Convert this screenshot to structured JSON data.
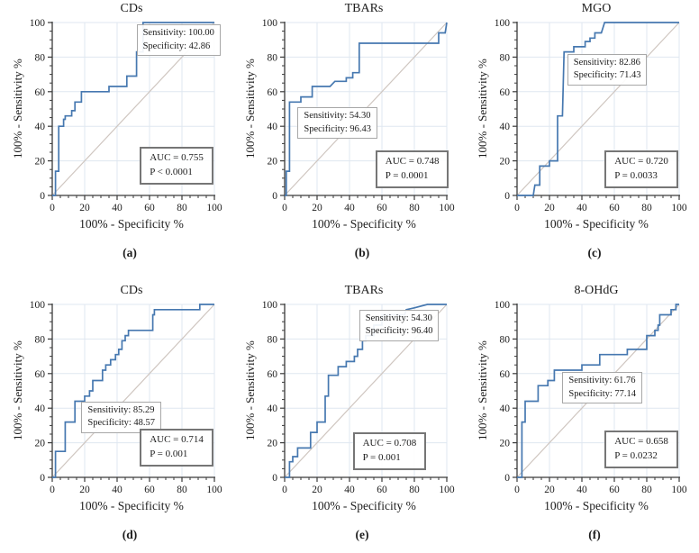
{
  "figure": {
    "colors": {
      "curve": "#4678b0",
      "grid": "#dfe7f0",
      "diagonal": "#cfc6c0",
      "axis": "#3a3a3a",
      "tick_text": "#1c1c1c",
      "ann_border": "#a8a8a8",
      "auc_border": "#767676"
    }
  },
  "chart_data": [
    {
      "type": "line",
      "title": "CDs",
      "caption": "(a)",
      "xlabel": "100% - Specificity %",
      "ylabel": "100% - Sensitivity %",
      "xlim": [
        0,
        100
      ],
      "ylim": [
        0,
        100
      ],
      "xticks": [
        0,
        20,
        40,
        60,
        80,
        100
      ],
      "yticks": [
        0,
        20,
        40,
        60,
        80,
        100
      ],
      "minor_tick_step": 5,
      "grid": true,
      "diagonal": true,
      "roc_points": [
        [
          0,
          0
        ],
        [
          2,
          0
        ],
        [
          2,
          14
        ],
        [
          4,
          14
        ],
        [
          4,
          40
        ],
        [
          7,
          40
        ],
        [
          7,
          44
        ],
        [
          8,
          44
        ],
        [
          8,
          46
        ],
        [
          12,
          46
        ],
        [
          12,
          49
        ],
        [
          14,
          49
        ],
        [
          14,
          54
        ],
        [
          18,
          54
        ],
        [
          18,
          60
        ],
        [
          35,
          60
        ],
        [
          35,
          63
        ],
        [
          46,
          63
        ],
        [
          46,
          69
        ],
        [
          52,
          69
        ],
        [
          52,
          83
        ],
        [
          56,
          83
        ],
        [
          56,
          100
        ],
        [
          100,
          100
        ]
      ],
      "annotation": {
        "lines": [
          "Sensitivity: 100.00",
          "Specificity: 42.86"
        ],
        "x": 52,
        "y": 99
      },
      "auc_box": {
        "lines": [
          "AUC = 0.755",
          "P < 0.0001"
        ],
        "x": 54,
        "y": 28
      }
    },
    {
      "type": "line",
      "title": "TBARs",
      "caption": "(b)",
      "xlabel": "100% - Specificity %",
      "ylabel": "100% - Sensitivity %",
      "xlim": [
        0,
        100
      ],
      "ylim": [
        0,
        100
      ],
      "xticks": [
        0,
        20,
        40,
        60,
        80,
        100
      ],
      "yticks": [
        0,
        20,
        40,
        60,
        80,
        100
      ],
      "minor_tick_step": 5,
      "grid": true,
      "diagonal": true,
      "roc_points": [
        [
          0,
          0
        ],
        [
          1,
          0
        ],
        [
          1,
          14
        ],
        [
          3,
          14
        ],
        [
          3,
          54
        ],
        [
          10,
          54
        ],
        [
          10,
          57
        ],
        [
          17,
          57
        ],
        [
          17,
          63
        ],
        [
          28,
          63
        ],
        [
          31,
          66
        ],
        [
          38,
          66
        ],
        [
          38,
          68
        ],
        [
          42,
          68
        ],
        [
          42,
          71
        ],
        [
          46,
          71
        ],
        [
          46,
          88
        ],
        [
          95,
          88
        ],
        [
          95,
          94
        ],
        [
          99,
          94
        ],
        [
          100,
          100
        ]
      ],
      "annotation": {
        "lines": [
          "Sensitivity: 54.30",
          "Specificity: 96.43"
        ],
        "x": 8,
        "y": 51
      },
      "auc_box": {
        "lines": [
          "AUC = 0.748",
          "P = 0.0001"
        ],
        "x": 56,
        "y": 26
      }
    },
    {
      "type": "line",
      "title": "MGO",
      "caption": "(c)",
      "xlabel": "100% - Specificity %",
      "ylabel": "100% - Sensitivity %",
      "xlim": [
        0,
        100
      ],
      "ylim": [
        0,
        100
      ],
      "xticks": [
        0,
        20,
        40,
        60,
        80,
        100
      ],
      "yticks": [
        0,
        20,
        40,
        60,
        80,
        100
      ],
      "minor_tick_step": 5,
      "grid": true,
      "diagonal": true,
      "roc_points": [
        [
          0,
          0
        ],
        [
          10,
          0
        ],
        [
          11,
          6
        ],
        [
          14,
          6
        ],
        [
          14,
          17
        ],
        [
          20,
          17
        ],
        [
          20,
          20
        ],
        [
          25,
          20
        ],
        [
          25,
          46
        ],
        [
          28,
          46
        ],
        [
          29,
          83
        ],
        [
          35,
          83
        ],
        [
          35,
          86
        ],
        [
          42,
          86
        ],
        [
          42,
          89
        ],
        [
          45,
          89
        ],
        [
          45,
          91
        ],
        [
          48,
          91
        ],
        [
          48,
          94
        ],
        [
          52,
          94
        ],
        [
          54,
          100
        ],
        [
          100,
          100
        ]
      ],
      "annotation": {
        "lines": [
          "Sensitivity: 82.86",
          "Specificity: 71.43"
        ],
        "x": 31,
        "y": 82
      },
      "auc_box": {
        "lines": [
          "AUC = 0.720",
          "P = 0.0033"
        ],
        "x": 54,
        "y": 26
      }
    },
    {
      "type": "line",
      "title": "CDs",
      "caption": "(d)",
      "xlabel": "100% - Specificity %",
      "ylabel": "100% - Sensitivity %",
      "xlim": [
        0,
        100
      ],
      "ylim": [
        0,
        100
      ],
      "xticks": [
        0,
        20,
        40,
        60,
        80,
        100
      ],
      "yticks": [
        0,
        20,
        40,
        60,
        80,
        100
      ],
      "minor_tick_step": 5,
      "grid": true,
      "diagonal": true,
      "roc_points": [
        [
          0,
          0
        ],
        [
          2,
          0
        ],
        [
          2,
          15
        ],
        [
          8,
          15
        ],
        [
          8,
          32
        ],
        [
          14,
          32
        ],
        [
          14,
          44
        ],
        [
          20,
          44
        ],
        [
          20,
          47
        ],
        [
          23,
          47
        ],
        [
          23,
          50
        ],
        [
          25,
          50
        ],
        [
          25,
          56
        ],
        [
          31,
          56
        ],
        [
          31,
          62
        ],
        [
          33,
          62
        ],
        [
          33,
          65
        ],
        [
          36,
          65
        ],
        [
          36,
          68
        ],
        [
          39,
          68
        ],
        [
          39,
          71
        ],
        [
          41,
          71
        ],
        [
          41,
          74
        ],
        [
          43,
          74
        ],
        [
          43,
          79
        ],
        [
          45,
          79
        ],
        [
          45,
          82
        ],
        [
          47,
          82
        ],
        [
          47,
          85
        ],
        [
          62,
          85
        ],
        [
          62,
          94
        ],
        [
          63,
          94
        ],
        [
          63,
          97
        ],
        [
          66,
          97
        ],
        [
          91,
          97
        ],
        [
          91,
          100
        ],
        [
          100,
          100
        ]
      ],
      "annotation": {
        "lines": [
          "Sensitivity: 85.29",
          "Specificity: 48.57"
        ],
        "x": 18,
        "y": 44
      },
      "auc_box": {
        "lines": [
          "AUC = 0.714",
          "P = 0.001"
        ],
        "x": 54,
        "y": 28
      }
    },
    {
      "type": "line",
      "title": "TBARs",
      "caption": "(e)",
      "xlabel": "100% - Specificity %",
      "ylabel": "100% - Sensitivity %",
      "xlim": [
        0,
        100
      ],
      "ylim": [
        0,
        100
      ],
      "xticks": [
        0,
        20,
        40,
        60,
        80,
        100
      ],
      "yticks": [
        0,
        20,
        40,
        60,
        80,
        100
      ],
      "minor_tick_step": 5,
      "grid": true,
      "diagonal": true,
      "roc_points": [
        [
          0,
          0
        ],
        [
          3,
          0
        ],
        [
          3,
          9
        ],
        [
          5,
          9
        ],
        [
          5,
          12
        ],
        [
          8,
          12
        ],
        [
          8,
          17
        ],
        [
          16,
          17
        ],
        [
          16,
          26
        ],
        [
          20,
          26
        ],
        [
          20,
          32
        ],
        [
          25,
          32
        ],
        [
          25,
          47
        ],
        [
          27,
          47
        ],
        [
          27,
          59
        ],
        [
          33,
          59
        ],
        [
          33,
          64
        ],
        [
          38,
          64
        ],
        [
          38,
          67
        ],
        [
          43,
          67
        ],
        [
          43,
          70
        ],
        [
          45,
          70
        ],
        [
          45,
          74
        ],
        [
          48,
          74
        ],
        [
          48,
          79
        ],
        [
          50,
          79
        ],
        [
          50,
          82
        ],
        [
          55,
          82
        ],
        [
          55,
          88
        ],
        [
          60,
          88
        ],
        [
          60,
          94
        ],
        [
          62,
          94
        ],
        [
          74,
          94
        ],
        [
          75,
          97
        ],
        [
          80,
          98
        ],
        [
          88,
          100
        ],
        [
          100,
          100
        ]
      ],
      "annotation": {
        "lines": [
          "Sensitivity: 54.30",
          "Specificity: 96.40"
        ],
        "x": 46,
        "y": 97
      },
      "auc_box": {
        "lines": [
          "AUC = 0.708",
          "P = 0.001"
        ],
        "x": 42,
        "y": 26
      }
    },
    {
      "type": "line",
      "title": "8-OHdG",
      "caption": "(f)",
      "xlabel": "100% - Specificity %",
      "ylabel": "100% - Sensitivity %",
      "xlim": [
        0,
        100
      ],
      "ylim": [
        0,
        100
      ],
      "xticks": [
        0,
        20,
        40,
        60,
        80,
        100
      ],
      "yticks": [
        0,
        20,
        40,
        60,
        80,
        100
      ],
      "minor_tick_step": 5,
      "grid": true,
      "diagonal": true,
      "roc_points": [
        [
          0,
          0
        ],
        [
          3,
          0
        ],
        [
          3,
          32
        ],
        [
          5,
          32
        ],
        [
          5,
          44
        ],
        [
          13,
          44
        ],
        [
          13,
          53
        ],
        [
          19,
          53
        ],
        [
          19,
          56
        ],
        [
          23,
          56
        ],
        [
          23,
          62
        ],
        [
          40,
          62
        ],
        [
          40,
          65
        ],
        [
          51,
          65
        ],
        [
          51,
          71
        ],
        [
          68,
          71
        ],
        [
          68,
          74
        ],
        [
          80,
          74
        ],
        [
          80,
          82
        ],
        [
          85,
          82
        ],
        [
          85,
          85
        ],
        [
          87,
          85
        ],
        [
          87,
          88
        ],
        [
          88,
          88
        ],
        [
          88,
          94
        ],
        [
          95,
          94
        ],
        [
          95,
          97
        ],
        [
          98,
          97
        ],
        [
          98,
          100
        ],
        [
          100,
          100
        ]
      ],
      "annotation": {
        "lines": [
          "Sensitivity: 61.76",
          "Specificity: 77.14"
        ],
        "x": 28,
        "y": 61
      },
      "auc_box": {
        "lines": [
          "AUC = 0.658",
          "P = 0.0232"
        ],
        "x": 54,
        "y": 27
      }
    }
  ]
}
